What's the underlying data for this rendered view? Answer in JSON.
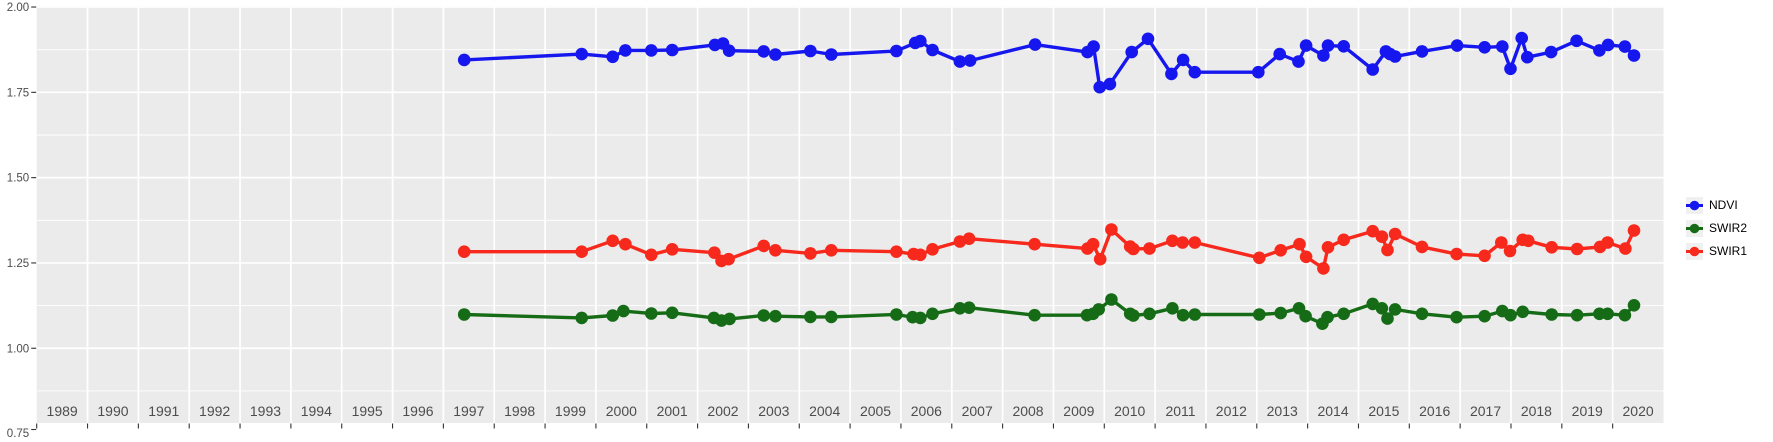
{
  "chart_data": {
    "type": "line",
    "title": "",
    "xlabel": "",
    "ylabel": "",
    "grid": "white major/minor gridlines on gray panel",
    "legend_position": "right",
    "x_axis": {
      "tick_years": [
        1989,
        1990,
        1991,
        1992,
        1993,
        1994,
        1995,
        1996,
        1997,
        1998,
        1999,
        2000,
        2001,
        2002,
        2003,
        2004,
        2005,
        2006,
        2007,
        2008,
        2009,
        2010,
        2011,
        2012,
        2013,
        2014,
        2015,
        2016,
        2017,
        2018,
        2019,
        2020
      ],
      "view_range": [
        1989.0,
        2021.0
      ]
    },
    "y_axis": {
      "major_ticks": [
        0.75,
        1.0,
        1.25,
        1.5,
        1.75,
        2.0
      ],
      "tick_labels": [
        "0.75",
        "1.00",
        "1.25",
        "1.50",
        "1.75",
        "2.00"
      ],
      "minor_ticks": [
        0.875,
        1.125,
        1.375,
        1.625,
        1.875
      ],
      "view_range": [
        0.781,
        2.003
      ]
    },
    "series": [
      {
        "name": "NDVI",
        "color": "#1616ee",
        "points": [
          [
            1997.41,
            1.845
          ],
          [
            1999.72,
            1.862
          ],
          [
            2000.33,
            1.854
          ],
          [
            2000.58,
            1.873
          ],
          [
            2001.09,
            1.873
          ],
          [
            2001.5,
            1.874
          ],
          [
            2002.34,
            1.889
          ],
          [
            2002.5,
            1.893
          ],
          [
            2002.62,
            1.872
          ],
          [
            2003.3,
            1.87
          ],
          [
            2003.53,
            1.861
          ],
          [
            2004.22,
            1.871
          ],
          [
            2004.63,
            1.861
          ],
          [
            2005.91,
            1.871
          ],
          [
            2006.28,
            1.895
          ],
          [
            2006.38,
            1.9
          ],
          [
            2006.62,
            1.874
          ],
          [
            2007.16,
            1.84
          ],
          [
            2007.36,
            1.843
          ],
          [
            2008.64,
            1.89
          ],
          [
            2009.67,
            1.868
          ],
          [
            2009.79,
            1.884
          ],
          [
            2009.91,
            1.765
          ],
          [
            2010.11,
            1.774
          ],
          [
            2010.54,
            1.868
          ],
          [
            2010.86,
            1.907
          ],
          [
            2011.32,
            1.804
          ],
          [
            2011.55,
            1.845
          ],
          [
            2011.78,
            1.809
          ],
          [
            2013.03,
            1.809
          ],
          [
            2013.45,
            1.862
          ],
          [
            2013.82,
            1.84
          ],
          [
            2013.97,
            1.887
          ],
          [
            2014.31,
            1.858
          ],
          [
            2014.4,
            1.887
          ],
          [
            2014.71,
            1.885
          ],
          [
            2015.28,
            1.817
          ],
          [
            2015.54,
            1.87
          ],
          [
            2015.62,
            1.862
          ],
          [
            2015.72,
            1.855
          ],
          [
            2016.25,
            1.87
          ],
          [
            2016.94,
            1.887
          ],
          [
            2017.48,
            1.882
          ],
          [
            2017.83,
            1.884
          ],
          [
            2017.99,
            1.819
          ],
          [
            2018.21,
            1.909
          ],
          [
            2018.32,
            1.853
          ],
          [
            2018.79,
            1.868
          ],
          [
            2019.29,
            1.901
          ],
          [
            2019.74,
            1.873
          ],
          [
            2019.91,
            1.889
          ],
          [
            2020.24,
            1.884
          ],
          [
            2020.42,
            1.858
          ]
        ]
      },
      {
        "name": "SWIR2",
        "color": "#166c16",
        "points": [
          [
            1997.41,
            1.099
          ],
          [
            1999.72,
            1.089
          ],
          [
            2000.33,
            1.096
          ],
          [
            2000.54,
            1.109
          ],
          [
            2001.09,
            1.102
          ],
          [
            2001.5,
            1.104
          ],
          [
            2002.32,
            1.089
          ],
          [
            2002.47,
            1.081
          ],
          [
            2002.63,
            1.086
          ],
          [
            2003.3,
            1.096
          ],
          [
            2003.53,
            1.094
          ],
          [
            2004.22,
            1.092
          ],
          [
            2004.63,
            1.092
          ],
          [
            2005.91,
            1.099
          ],
          [
            2006.23,
            1.091
          ],
          [
            2006.38,
            1.089
          ],
          [
            2006.62,
            1.101
          ],
          [
            2007.16,
            1.117
          ],
          [
            2007.34,
            1.119
          ],
          [
            2008.63,
            1.097
          ],
          [
            2009.66,
            1.097
          ],
          [
            2009.78,
            1.101
          ],
          [
            2009.89,
            1.114
          ],
          [
            2010.14,
            1.143
          ],
          [
            2010.51,
            1.101
          ],
          [
            2010.57,
            1.096
          ],
          [
            2010.89,
            1.101
          ],
          [
            2011.34,
            1.117
          ],
          [
            2011.55,
            1.097
          ],
          [
            2011.78,
            1.099
          ],
          [
            2013.05,
            1.099
          ],
          [
            2013.47,
            1.103
          ],
          [
            2013.83,
            1.117
          ],
          [
            2013.96,
            1.094
          ],
          [
            2014.29,
            1.072
          ],
          [
            2014.39,
            1.091
          ],
          [
            2014.71,
            1.101
          ],
          [
            2015.28,
            1.13
          ],
          [
            2015.46,
            1.117
          ],
          [
            2015.57,
            1.087
          ],
          [
            2015.72,
            1.114
          ],
          [
            2016.25,
            1.101
          ],
          [
            2016.93,
            1.091
          ],
          [
            2017.48,
            1.094
          ],
          [
            2017.83,
            1.109
          ],
          [
            2017.99,
            1.097
          ],
          [
            2018.23,
            1.107
          ],
          [
            2018.8,
            1.099
          ],
          [
            2019.3,
            1.097
          ],
          [
            2019.74,
            1.101
          ],
          [
            2019.9,
            1.101
          ],
          [
            2020.24,
            1.097
          ],
          [
            2020.42,
            1.126
          ]
        ]
      },
      {
        "name": "SWIR1",
        "color": "#f6291c",
        "points": [
          [
            1997.41,
            1.283
          ],
          [
            1999.72,
            1.283
          ],
          [
            2000.33,
            1.315
          ],
          [
            2000.58,
            1.305
          ],
          [
            2001.09,
            1.274
          ],
          [
            2001.5,
            1.29
          ],
          [
            2002.33,
            1.28
          ],
          [
            2002.47,
            1.256
          ],
          [
            2002.61,
            1.261
          ],
          [
            2003.3,
            1.3
          ],
          [
            2003.53,
            1.287
          ],
          [
            2004.22,
            1.278
          ],
          [
            2004.63,
            1.287
          ],
          [
            2005.91,
            1.283
          ],
          [
            2006.25,
            1.276
          ],
          [
            2006.38,
            1.274
          ],
          [
            2006.62,
            1.29
          ],
          [
            2007.16,
            1.313
          ],
          [
            2007.34,
            1.321
          ],
          [
            2008.63,
            1.305
          ],
          [
            2009.67,
            1.292
          ],
          [
            2009.78,
            1.305
          ],
          [
            2009.92,
            1.261
          ],
          [
            2010.14,
            1.348
          ],
          [
            2010.51,
            1.298
          ],
          [
            2010.57,
            1.291
          ],
          [
            2010.89,
            1.292
          ],
          [
            2011.34,
            1.315
          ],
          [
            2011.54,
            1.31
          ],
          [
            2011.78,
            1.31
          ],
          [
            2013.05,
            1.265
          ],
          [
            2013.47,
            1.287
          ],
          [
            2013.84,
            1.305
          ],
          [
            2013.97,
            1.268
          ],
          [
            2014.31,
            1.234
          ],
          [
            2014.4,
            1.296
          ],
          [
            2014.71,
            1.318
          ],
          [
            2015.28,
            1.343
          ],
          [
            2015.46,
            1.327
          ],
          [
            2015.57,
            1.288
          ],
          [
            2015.72,
            1.335
          ],
          [
            2016.25,
            1.297
          ],
          [
            2016.93,
            1.276
          ],
          [
            2017.48,
            1.271
          ],
          [
            2017.81,
            1.31
          ],
          [
            2017.98,
            1.285
          ],
          [
            2018.23,
            1.318
          ],
          [
            2018.34,
            1.315
          ],
          [
            2018.8,
            1.296
          ],
          [
            2019.3,
            1.291
          ],
          [
            2019.75,
            1.297
          ],
          [
            2019.9,
            1.31
          ],
          [
            2020.25,
            1.292
          ],
          [
            2020.42,
            1.345
          ]
        ]
      }
    ]
  },
  "legend": {
    "items": [
      {
        "label": "NDVI",
        "color": "#1616ee"
      },
      {
        "label": "SWIR2",
        "color": "#166c16"
      },
      {
        "label": "SWIR1",
        "color": "#f6291c"
      }
    ]
  },
  "colors": {
    "panel_background": "#ebebeb",
    "gridline": "#ffffff",
    "axis_text": "#4d4d4d",
    "tick_mark": "#333333",
    "legend_key_background": "#f0f0f0",
    "page_background": "#ffffff"
  }
}
